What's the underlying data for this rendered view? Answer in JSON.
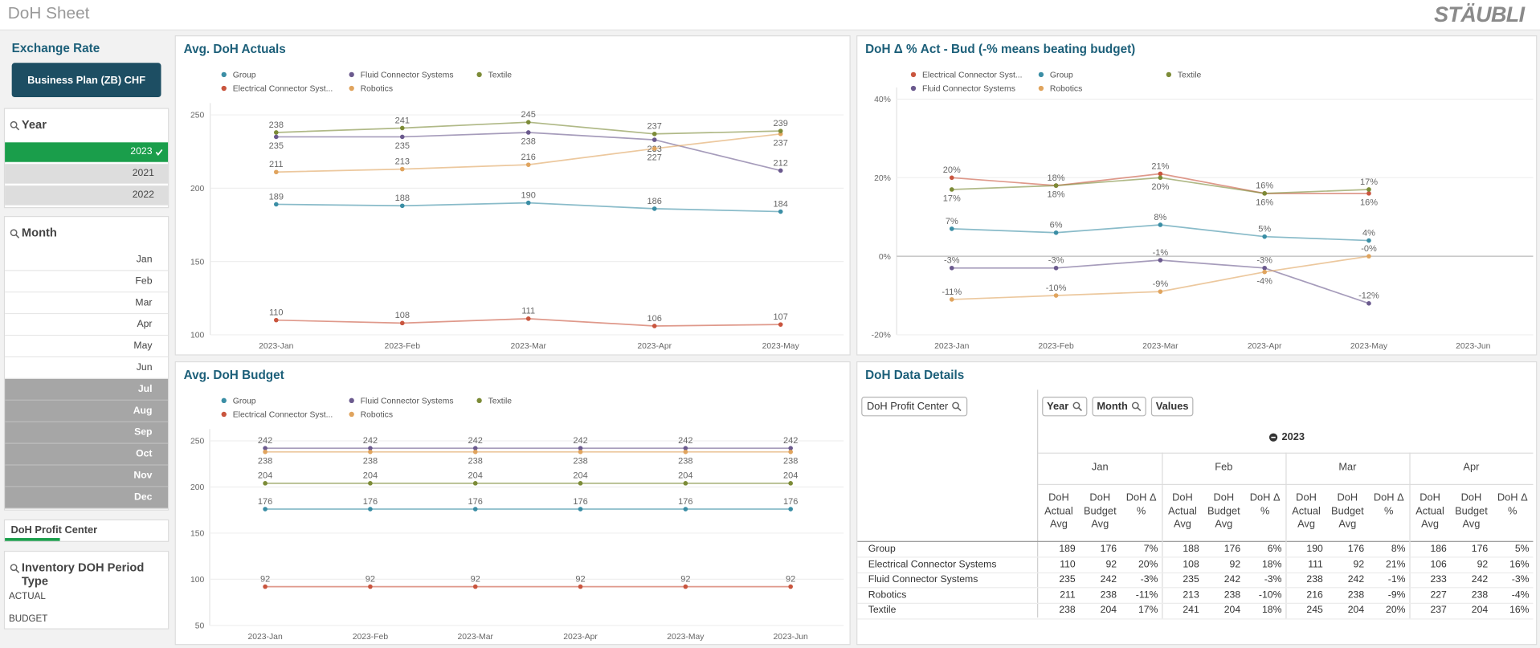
{
  "header": {
    "title": "DoH Sheet",
    "logo": "STÄUBLI"
  },
  "sidebar": {
    "exchange_rate": {
      "title": "Exchange Rate",
      "button": "Business Plan (ZB) CHF"
    },
    "year": {
      "title": "Year",
      "items": [
        {
          "label": "2023",
          "state": "selected"
        },
        {
          "label": "2021",
          "state": "alternative"
        },
        {
          "label": "2022",
          "state": "alternative"
        }
      ]
    },
    "month": {
      "title": "Month",
      "items": [
        {
          "label": "Jan",
          "state": "possible"
        },
        {
          "label": "Feb",
          "state": "possible"
        },
        {
          "label": "Mar",
          "state": "possible"
        },
        {
          "label": "Apr",
          "state": "possible"
        },
        {
          "label": "May",
          "state": "possible"
        },
        {
          "label": "Jun",
          "state": "possible"
        },
        {
          "label": "Jul",
          "state": "excluded"
        },
        {
          "label": "Aug",
          "state": "excluded"
        },
        {
          "label": "Sep",
          "state": "excluded"
        },
        {
          "label": "Oct",
          "state": "excluded"
        },
        {
          "label": "Nov",
          "state": "excluded"
        },
        {
          "label": "Dec",
          "state": "excluded"
        }
      ]
    },
    "profit_center": {
      "title": "DoH Profit Center"
    },
    "period_type": {
      "title": "Inventory DOH Period Type",
      "items": [
        "ACTUAL",
        "BUDGET"
      ]
    }
  },
  "chart_data": [
    {
      "type": "line",
      "title": "Avg. DoH Actuals",
      "categories": [
        "2023-Jan",
        "2023-Feb",
        "2023-Mar",
        "2023-Apr",
        "2023-May"
      ],
      "ylim": [
        100,
        250
      ],
      "yticks": [
        100,
        150,
        200,
        250
      ],
      "grid": true,
      "series": [
        {
          "name": "Group",
          "color": "#3b8ea5",
          "values": [
            189,
            188,
            190,
            186,
            184
          ]
        },
        {
          "name": "Electrical Connector Syst...",
          "color": "#c9553e",
          "values": [
            110,
            108,
            111,
            106,
            107
          ]
        },
        {
          "name": "Fluid Connector Systems",
          "color": "#6b5a8e",
          "values": [
            235,
            235,
            238,
            233,
            212
          ]
        },
        {
          "name": "Robotics",
          "color": "#e0a45e",
          "values": [
            211,
            213,
            216,
            227,
            237
          ]
        },
        {
          "name": "Textile",
          "color": "#7c8b37",
          "values": [
            238,
            241,
            245,
            237,
            239
          ]
        }
      ]
    },
    {
      "type": "line",
      "title": "DoH Δ % Act - Bud (-% means beating budget)",
      "categories": [
        "2023-Jan",
        "2023-Feb",
        "2023-Mar",
        "2023-Apr",
        "2023-May",
        "2023-Jun"
      ],
      "ylim": [
        -20,
        40
      ],
      "yticks": [
        {
          "value": -20,
          "label": "-20%"
        },
        {
          "value": 0,
          "label": "0%"
        },
        {
          "value": 20,
          "label": "20%"
        },
        {
          "value": 40,
          "label": "40%"
        }
      ],
      "grid": true,
      "series": [
        {
          "name": "Electrical Connector Syst...",
          "color": "#c9553e",
          "values": [
            20,
            18,
            21,
            16,
            16,
            null
          ],
          "value_labels": [
            "20%",
            "18%",
            "21%",
            "16%",
            "16%",
            null
          ]
        },
        {
          "name": "Fluid Connector Systems",
          "color": "#6b5a8e",
          "values": [
            -3,
            -3,
            -1,
            -3,
            -12,
            null
          ],
          "value_labels": [
            "-3%",
            "-3%",
            "-1%",
            "-3%",
            "-12%",
            null
          ]
        },
        {
          "name": "Group",
          "color": "#3b8ea5",
          "values": [
            7,
            6,
            8,
            5,
            4,
            null
          ],
          "value_labels": [
            "7%",
            "6%",
            "8%",
            "5%",
            "4%",
            null
          ]
        },
        {
          "name": "Robotics",
          "color": "#e0a45e",
          "values": [
            -11,
            -10,
            -9,
            -4,
            0,
            null
          ],
          "value_labels": [
            "-11%",
            "-10%",
            "-9%",
            "-4%",
            "-0%",
            null
          ]
        },
        {
          "name": "Textile",
          "color": "#7c8b37",
          "values": [
            17,
            18,
            20,
            16,
            17,
            null
          ],
          "value_labels": [
            "17%",
            "18%",
            "20%",
            "16%",
            "17%",
            null
          ]
        }
      ]
    },
    {
      "type": "line",
      "title": "Avg. DoH Budget",
      "categories": [
        "2023-Jan",
        "2023-Feb",
        "2023-Mar",
        "2023-Apr",
        "2023-May",
        "2023-Jun"
      ],
      "ylim": [
        50,
        250
      ],
      "yticks": [
        50,
        100,
        150,
        200,
        250
      ],
      "grid": true,
      "series": [
        {
          "name": "Group",
          "color": "#3b8ea5",
          "values": [
            176,
            176,
            176,
            176,
            176,
            176
          ]
        },
        {
          "name": "Electrical Connector Syst...",
          "color": "#c9553e",
          "values": [
            92,
            92,
            92,
            92,
            92,
            92
          ]
        },
        {
          "name": "Fluid Connector Systems",
          "color": "#6b5a8e",
          "values": [
            242,
            242,
            242,
            242,
            242,
            242
          ]
        },
        {
          "name": "Robotics",
          "color": "#e0a45e",
          "values": [
            238,
            238,
            238,
            238,
            238,
            238
          ]
        },
        {
          "name": "Textile",
          "color": "#7c8b37",
          "values": [
            204,
            204,
            204,
            204,
            204,
            204
          ]
        }
      ]
    }
  ],
  "table": {
    "title": "DoH Data Details",
    "dimension_button": "DoH Profit Center",
    "pivot_buttons": [
      "Year",
      "Month",
      "Values"
    ],
    "year": "2023",
    "months": [
      "Jan",
      "Feb",
      "Mar",
      "Apr"
    ],
    "column_headers": [
      "DoH Actual Avg",
      "DoH Budget Avg",
      "DoH Δ %"
    ],
    "rows": [
      {
        "name": "Group",
        "cells": [
          "189",
          "176",
          "7%",
          "188",
          "176",
          "6%",
          "190",
          "176",
          "8%",
          "186",
          "176",
          "5%"
        ]
      },
      {
        "name": "Electrical Connector Systems",
        "cells": [
          "110",
          "92",
          "20%",
          "108",
          "92",
          "18%",
          "111",
          "92",
          "21%",
          "106",
          "92",
          "16%"
        ]
      },
      {
        "name": "Fluid Connector Systems",
        "cells": [
          "235",
          "242",
          "-3%",
          "235",
          "242",
          "-3%",
          "238",
          "242",
          "-1%",
          "233",
          "242",
          "-3%"
        ]
      },
      {
        "name": "Robotics",
        "cells": [
          "211",
          "238",
          "-11%",
          "213",
          "238",
          "-10%",
          "216",
          "238",
          "-9%",
          "227",
          "238",
          "-4%"
        ]
      },
      {
        "name": "Textile",
        "cells": [
          "238",
          "204",
          "17%",
          "241",
          "204",
          "18%",
          "245",
          "204",
          "20%",
          "237",
          "204",
          "16%"
        ]
      }
    ]
  }
}
